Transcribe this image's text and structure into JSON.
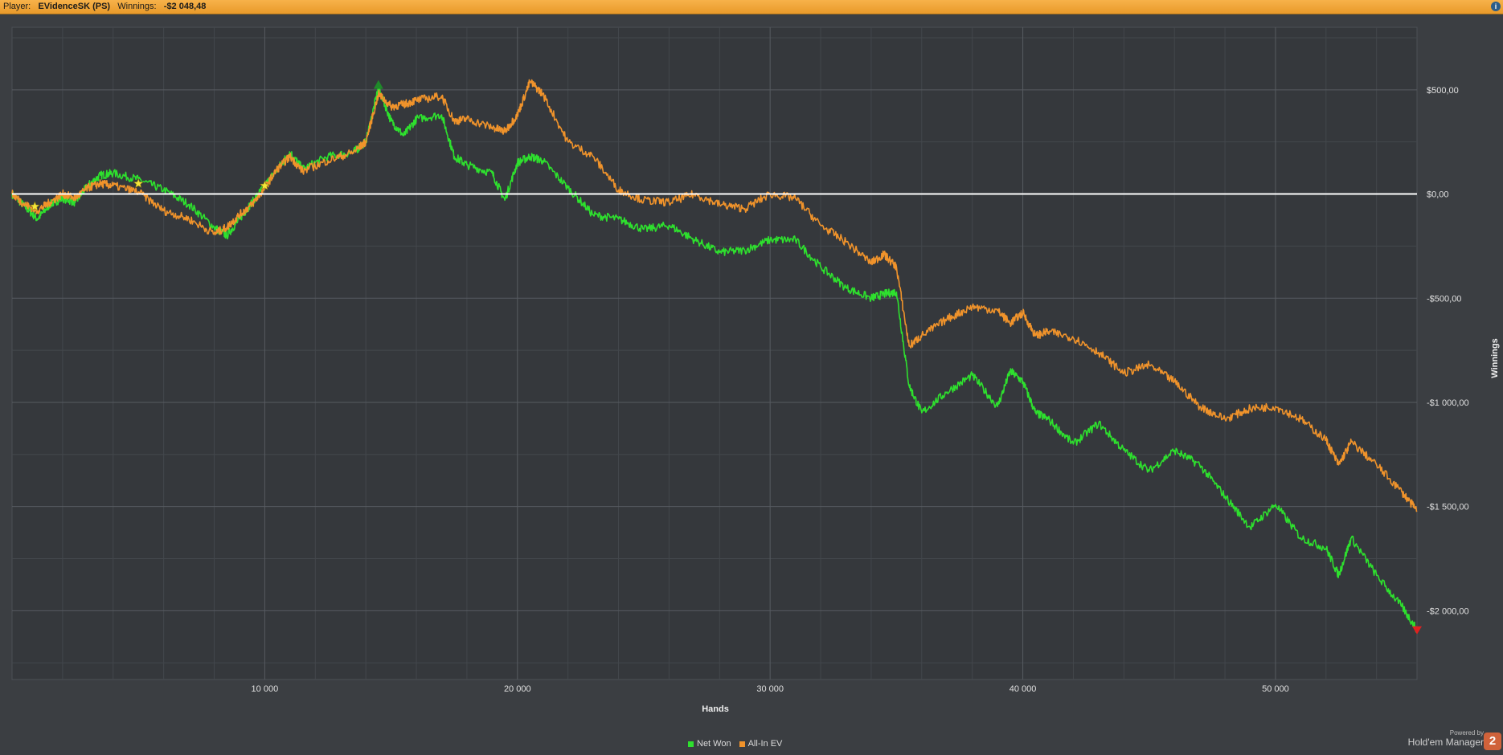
{
  "header": {
    "player_label": "Player:",
    "player_name": "EVidenceSK (PS)",
    "winnings_label": "Winnings:",
    "winnings_value": "-$2 048,48",
    "info_icon": "info-icon"
  },
  "chart_data": {
    "type": "line",
    "xlabel": "Hands",
    "ylabel": "Winnings",
    "xlim": [
      0,
      55600
    ],
    "ylim": [
      -2330,
      800
    ],
    "x_ticks": [
      10000,
      20000,
      30000,
      40000,
      50000
    ],
    "x_tick_labels": [
      "10 000",
      "20 000",
      "30 000",
      "40 000",
      "50 000"
    ],
    "y_ticks": [
      500,
      0,
      -500,
      -1000,
      -1500,
      -2000
    ],
    "y_tick_labels": [
      "$500,00",
      "$0,00",
      "-$500,00",
      "-$1 000,00",
      "-$1 500,00",
      "-$2 000,00"
    ],
    "grid": true,
    "zero_line": true,
    "legend_position": "bottom-center",
    "series": [
      {
        "name": "Net Won",
        "color": "#2ee02e",
        "x": [
          0,
          500,
          1000,
          1500,
          2000,
          2500,
          3000,
          3500,
          4000,
          5000,
          6000,
          7000,
          8000,
          8500,
          9000,
          9500,
          10000,
          10500,
          11000,
          11500,
          12500,
          13500,
          14000,
          14500,
          15000,
          15500,
          16000,
          17000,
          17500,
          18000,
          19000,
          19500,
          20000,
          20500,
          21000,
          22000,
          23000,
          24000,
          25000,
          26000,
          27000,
          28000,
          29000,
          30000,
          31000,
          32000,
          33000,
          34000,
          34500,
          35000,
          35500,
          36000,
          37000,
          38000,
          39000,
          39500,
          40000,
          40500,
          41000,
          42000,
          43000,
          44000,
          45000,
          46000,
          47000,
          48000,
          49000,
          50000,
          51000,
          52000,
          52500,
          53000,
          54000,
          55000,
          55600
        ],
        "y": [
          0,
          -60,
          -120,
          -50,
          -20,
          -40,
          40,
          90,
          100,
          70,
          20,
          -50,
          -160,
          -200,
          -120,
          -40,
          40,
          120,
          200,
          120,
          180,
          200,
          250,
          510,
          350,
          280,
          360,
          380,
          180,
          140,
          100,
          -30,
          150,
          180,
          160,
          30,
          -100,
          -120,
          -170,
          -150,
          -220,
          -280,
          -270,
          -220,
          -220,
          -350,
          -450,
          -500,
          -480,
          -470,
          -920,
          -1050,
          -950,
          -870,
          -1020,
          -850,
          -900,
          -1050,
          -1080,
          -1200,
          -1100,
          -1230,
          -1330,
          -1230,
          -1300,
          -1450,
          -1600,
          -1490,
          -1650,
          -1700,
          -1830,
          -1650,
          -1830,
          -1980,
          -2090
        ]
      },
      {
        "name": "All-In EV",
        "color": "#f0932b",
        "x": [
          0,
          500,
          1000,
          1500,
          2000,
          2500,
          3000,
          3500,
          4000,
          5000,
          6000,
          7000,
          8000,
          8500,
          9000,
          9500,
          10000,
          10500,
          11000,
          11500,
          12500,
          13500,
          14000,
          14500,
          15000,
          15500,
          16000,
          17000,
          17500,
          18000,
          19000,
          19500,
          20000,
          20500,
          21000,
          22000,
          23000,
          24000,
          25000,
          26000,
          27000,
          28000,
          29000,
          30000,
          31000,
          32000,
          33000,
          34000,
          34500,
          35000,
          35500,
          36000,
          37000,
          38000,
          39000,
          39500,
          40000,
          40500,
          41000,
          42000,
          43000,
          44000,
          45000,
          46000,
          47000,
          48000,
          49000,
          50000,
          51000,
          52000,
          52500,
          53000,
          54000,
          55000,
          55600
        ],
        "y": [
          0,
          -50,
          -80,
          -40,
          0,
          -20,
          30,
          50,
          40,
          10,
          -80,
          -120,
          -190,
          -160,
          -100,
          -50,
          30,
          120,
          180,
          110,
          160,
          200,
          250,
          480,
          420,
          430,
          450,
          470,
          350,
          360,
          320,
          300,
          380,
          540,
          480,
          250,
          180,
          20,
          -30,
          -40,
          0,
          -50,
          -70,
          0,
          -20,
          -150,
          -230,
          -330,
          -290,
          -350,
          -730,
          -680,
          -600,
          -540,
          -560,
          -620,
          -570,
          -680,
          -660,
          -690,
          -760,
          -860,
          -820,
          -900,
          -1020,
          -1080,
          -1030,
          -1020,
          -1080,
          -1180,
          -1300,
          -1190,
          -1300,
          -1430,
          -1520
        ]
      }
    ],
    "markers": [
      {
        "type": "star",
        "x": 900,
        "y": -60,
        "color": "#f5e63a"
      },
      {
        "type": "star",
        "x": 5000,
        "y": 50,
        "color": "#f5e63a"
      },
      {
        "type": "star",
        "x": 10000,
        "y": 40,
        "color": "#f5e63a"
      },
      {
        "type": "triangle-up",
        "x": 14500,
        "y": 520,
        "color": "#1f8a2a"
      },
      {
        "type": "triangle-down",
        "x": 55600,
        "y": -2090,
        "color": "#e02020"
      }
    ]
  },
  "legend": {
    "items": [
      {
        "label": "Net Won",
        "color": "#2ee02e"
      },
      {
        "label": "All-In EV",
        "color": "#f0932b"
      }
    ]
  },
  "branding": {
    "powered_by": "Powered by",
    "product": "Hold'em Manager",
    "logo_text": "2"
  }
}
